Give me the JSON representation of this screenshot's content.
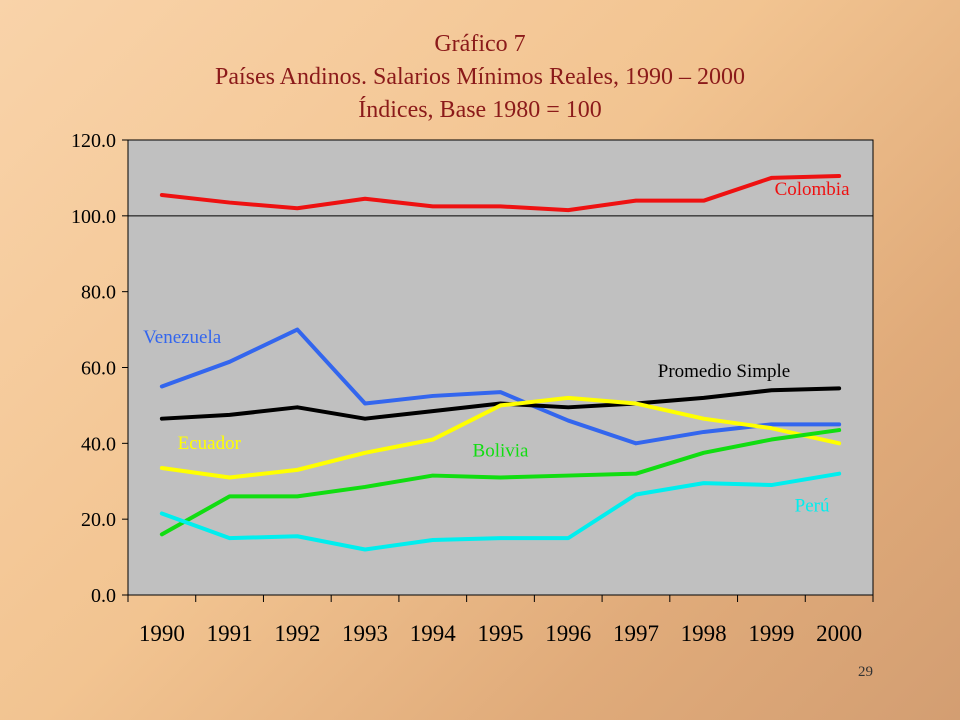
{
  "slide": {
    "page_number": "29"
  },
  "chart_data": {
    "type": "line",
    "title": "Gráfico 7",
    "subtitle": "Países Andinos. Salarios Mínimos Reales, 1990 – 2000",
    "subtitle2": "Índices, Base 1980 = 100",
    "xlabel": "",
    "ylabel": "",
    "categories": [
      "1990",
      "1991",
      "1992",
      "1993",
      "1994",
      "1995",
      "1996",
      "1997",
      "1998",
      "1999",
      "2000"
    ],
    "ylim": [
      0,
      120
    ],
    "yticks": [
      "0.0",
      "20.0",
      "40.0",
      "60.0",
      "80.0",
      "100.0",
      "120.0"
    ],
    "reference_line": 100,
    "grid": false,
    "plot_background": "#c0c0c0",
    "series": [
      {
        "name": "Colombia",
        "color": "#ee1111",
        "values": [
          105.5,
          103.5,
          102,
          104.5,
          102.5,
          102.5,
          101.5,
          104,
          104,
          110,
          110.5
        ]
      },
      {
        "name": "Venezuela",
        "color": "#3366ee",
        "values": [
          55,
          61.5,
          70,
          50.5,
          52.5,
          53.5,
          46,
          40,
          43,
          45,
          45
        ]
      },
      {
        "name": "Promedio Simple",
        "color": "#000000",
        "values": [
          46.5,
          47.5,
          49.5,
          46.5,
          48.5,
          50.5,
          49.5,
          50.5,
          52,
          54,
          54.5
        ]
      },
      {
        "name": "Ecuador",
        "color": "#ffff00",
        "values": [
          33.5,
          31,
          33,
          37.5,
          41,
          50,
          52,
          50.5,
          46.5,
          44,
          40
        ]
      },
      {
        "name": "Bolivia",
        "color": "#11dd11",
        "values": [
          16,
          26,
          26,
          28.5,
          31.5,
          31,
          31.5,
          32,
          37.5,
          41,
          43.5
        ]
      },
      {
        "name": "Perú",
        "color": "#00eeee",
        "values": [
          21.5,
          15,
          15.5,
          12,
          14.5,
          15,
          15,
          26.5,
          29.5,
          29,
          32
        ]
      }
    ]
  }
}
